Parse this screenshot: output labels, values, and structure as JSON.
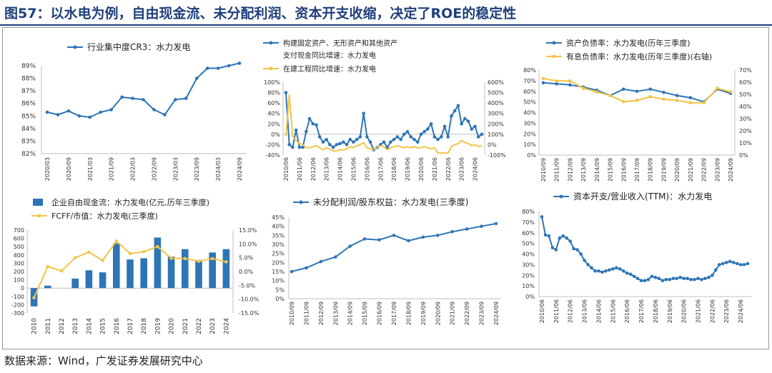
{
  "page": {
    "title": "图57：以水电为例，自由现金流、未分配利润、资本开支收缩，决定了ROE的稳定性",
    "source": "数据来源：Wind，广发证券发展研究中心"
  },
  "colors": {
    "blue": "#2e75b6",
    "gold": "#f2c447",
    "bar": "#2e75b6",
    "title": "#1f3f7a",
    "axis": "#bfbfbf"
  },
  "chart_data": [
    {
      "id": "cr3",
      "type": "line",
      "legend": [
        "行业集中度CR3：水力发电"
      ],
      "x_tick_labels": [
        "2020/03",
        "2020/09",
        "2021/03",
        "2021/09",
        "2022/03",
        "2022/09",
        "2023/03",
        "2023/09",
        "2024/03",
        "2024/09"
      ],
      "y_tick_labels": [
        "82%",
        "83%",
        "84%",
        "85%",
        "86%",
        "87%",
        "88%",
        "89%"
      ],
      "ylim": [
        82,
        89
      ],
      "series": [
        {
          "name": "行业集中度CR3：水力发电",
          "color": "#2e75b6",
          "x": [
            0,
            1,
            2,
            3,
            4,
            5,
            6,
            7,
            8,
            9,
            10,
            11,
            12,
            13,
            14,
            15,
            16,
            17,
            18
          ],
          "y": [
            85.3,
            85.1,
            85.4,
            85.0,
            84.9,
            85.3,
            85.5,
            86.5,
            86.4,
            86.3,
            85.5,
            85.1,
            86.3,
            86.4,
            88.0,
            88.8,
            88.8,
            89.0,
            89.2
          ]
        }
      ]
    },
    {
      "id": "capex_growth",
      "type": "line",
      "legend": [
        "构建固定资产、无形资产和其他资产支付现金同比增速：水力发电",
        "在建工程同比增速：水力发电"
      ],
      "x_tick_labels": [
        "2010/06",
        "2011/06",
        "2012/06",
        "2013/06",
        "2014/06",
        "2015/06",
        "2016/06",
        "2017/06",
        "2018/06",
        "2019/06",
        "2020/06",
        "2021/06",
        "2022/06",
        "2023/06",
        "2024/06"
      ],
      "y_left_tick_labels": [
        "-40%",
        "-20%",
        "0%",
        "20%",
        "40%",
        "60%",
        "80%",
        "100%"
      ],
      "y_right_tick_labels": [
        "-100%",
        "0%",
        "100%",
        "200%",
        "300%",
        "400%",
        "500%",
        "600%"
      ],
      "ylim_left": [
        -40,
        100
      ],
      "ylim_right": [
        -100,
        600
      ],
      "series": [
        {
          "name": "构建固定资产、无形资产和其他资产支付现金同比增速：水力发电",
          "axis": "left",
          "color": "#2e75b6",
          "x": [
            0,
            0.25,
            0.5,
            0.75,
            1,
            1.25,
            1.5,
            1.75,
            2,
            2.25,
            2.5,
            2.75,
            3,
            3.25,
            3.5,
            3.75,
            4,
            4.25,
            4.5,
            4.75,
            5,
            5.25,
            5.5,
            5.75,
            6,
            6.25,
            6.5,
            6.75,
            7,
            7.25,
            7.5,
            7.75,
            8,
            8.25,
            8.5,
            8.75,
            9,
            9.25,
            9.5,
            9.75,
            10,
            10.25,
            10.5,
            10.75,
            11,
            11.25,
            11.5,
            11.75,
            12,
            12.25,
            12.5,
            12.75,
            13,
            13.25,
            13.5,
            13.75,
            14,
            14.25,
            14.5
          ],
          "y": [
            80,
            -20,
            -25,
            8,
            -25,
            -25,
            5,
            30,
            20,
            18,
            -5,
            -15,
            -10,
            -20,
            -25,
            -20,
            -18,
            -15,
            -20,
            -10,
            -15,
            -10,
            -5,
            40,
            -5,
            -15,
            -30,
            -25,
            -20,
            -15,
            -25,
            -15,
            -10,
            -5,
            -10,
            0,
            5,
            -5,
            -10,
            -15,
            0,
            5,
            10,
            20,
            -5,
            -10,
            -5,
            15,
            -5,
            35,
            45,
            55,
            20,
            30,
            25,
            10,
            15,
            -5,
            0
          ]
        },
        {
          "name": "在建工程同比增速：水力发电",
          "axis": "right",
          "color": "#f2c447",
          "x": [
            0,
            0.25,
            0.5,
            0.75,
            1,
            1.25,
            1.5,
            1.75,
            2,
            2.25,
            2.5,
            2.75,
            3,
            3.25,
            3.5,
            3.75,
            4,
            4.25,
            4.5,
            4.75,
            5,
            5.25,
            5.5,
            5.75,
            6,
            6.25,
            6.5,
            6.75,
            7,
            7.25,
            7.5,
            7.75,
            8,
            8.25,
            8.5,
            8.75,
            9,
            9.25,
            9.5,
            9.75,
            10,
            10.25,
            10.5,
            10.75,
            11,
            11.25,
            11.5,
            11.75,
            12,
            12.25,
            12.5,
            12.75,
            13,
            13.25,
            13.5,
            13.75,
            14,
            14.25,
            14.5
          ],
          "y": [
            80,
            480,
            80,
            40,
            10,
            0,
            -30,
            -30,
            -20,
            -10,
            -30,
            -50,
            -30,
            -40,
            -60,
            -60,
            -50,
            -50,
            -40,
            -20,
            -30,
            -10,
            0,
            20,
            -30,
            -40,
            -50,
            -20,
            -10,
            -20,
            -50,
            -30,
            -20,
            -10,
            -20,
            -30,
            -20,
            -30,
            -20,
            -30,
            -30,
            -20,
            -30,
            -40,
            -30,
            -80,
            -80,
            -80,
            -80,
            -20,
            0,
            10,
            40,
            20,
            10,
            -10,
            0,
            -20,
            -10
          ]
        }
      ]
    },
    {
      "id": "leverage",
      "type": "line",
      "legend": [
        "资产负债率：水力发电(历年三季度)",
        "有息负债率：水力发电(历年三季度)(右轴)"
      ],
      "x_tick_labels": [
        "2010/09",
        "2011/09",
        "2012/09",
        "2013/09",
        "2014/09",
        "2015/09",
        "2016/09",
        "2017/09",
        "2018/09",
        "2019/09",
        "2020/09",
        "2021/09",
        "2022/09",
        "2023/09",
        "2024/09"
      ],
      "y_left_tick_labels": [
        "0%",
        "10%",
        "20%",
        "30%",
        "40%",
        "50%",
        "60%",
        "70%",
        "80%"
      ],
      "y_right_tick_labels": [
        "0%",
        "10%",
        "20%",
        "30%",
        "40%",
        "50%",
        "60%",
        "70%"
      ],
      "ylim_left": [
        0,
        80
      ],
      "ylim_right": [
        0,
        70
      ],
      "series": [
        {
          "name": "资产负债率：水力发电(历年三季度)",
          "axis": "left",
          "color": "#2e75b6",
          "x": [
            0,
            1,
            2,
            3,
            4,
            5,
            6,
            7,
            8,
            9,
            10,
            11,
            12,
            13,
            14
          ],
          "y": [
            68,
            67,
            66,
            64,
            61,
            56,
            62,
            60,
            62,
            59,
            56,
            54,
            50,
            62,
            58
          ]
        },
        {
          "name": "有息负债率：水力发电(历年三季度)(右轴)",
          "axis": "right",
          "color": "#f2c447",
          "x": [
            0,
            1,
            2,
            3,
            4,
            5,
            6,
            7,
            8,
            9,
            10,
            11,
            12,
            13,
            14
          ],
          "y": [
            63,
            61,
            61,
            55,
            52,
            49,
            44,
            45,
            48,
            46,
            45,
            43,
            43,
            55,
            52
          ]
        }
      ]
    },
    {
      "id": "fcf",
      "type": "bar",
      "legend": [
        "企业自由现金流：水力发电(亿元,历年三季度)",
        "FCFF/市值：水力发电(三季度)"
      ],
      "categories": [
        "2010",
        "2011",
        "2012",
        "2013",
        "2014",
        "2015",
        "2016",
        "2017",
        "2018",
        "2019",
        "2020",
        "2021",
        "2022",
        "2023",
        "2024"
      ],
      "y_left_tick_labels": [
        "-300",
        "-200",
        "-100",
        "0",
        "100",
        "200",
        "300",
        "400",
        "500",
        "600",
        "700"
      ],
      "y_right_tick_labels": [
        "-15.0%",
        "-10.0%",
        "-5.0%",
        "0.0%",
        "5.0%",
        "10.0%",
        "15.0%"
      ],
      "ylim_left": [
        -300,
        700
      ],
      "ylim_right": [
        -15,
        15
      ],
      "series": [
        {
          "name": "企业自由现金流：水力发电(亿元,历年三季度)",
          "type": "bar",
          "axis": "left",
          "color": "#2e75b6",
          "values": [
            -220,
            30,
            0,
            115,
            215,
            190,
            540,
            345,
            360,
            610,
            380,
            470,
            340,
            430,
            470
          ]
        },
        {
          "name": "FCFF/市值：水力发电(三季度)",
          "type": "line",
          "axis": "right",
          "color": "#f2c447",
          "values": [
            -9.5,
            1.8,
            0.2,
            5,
            7,
            4,
            11,
            6.5,
            7.2,
            9,
            4.8,
            4.7,
            3.7,
            4.7,
            3.5
          ]
        }
      ]
    },
    {
      "id": "undistributed_profit",
      "type": "line",
      "legend": [
        "未分配利润/股东权益：水力发电(三季度)"
      ],
      "x_tick_labels": [
        "2010/09",
        "2011/09",
        "2012/09",
        "2013/09",
        "2014/09",
        "2015/09",
        "2016/09",
        "2017/09",
        "2018/09",
        "2019/09",
        "2020/09",
        "2021/09",
        "2022/09",
        "2023/09",
        "2024/09"
      ],
      "y_tick_labels": [
        "0%",
        "5%",
        "10%",
        "15%",
        "20%",
        "25%",
        "30%",
        "35%",
        "40%",
        "45%"
      ],
      "ylim": [
        0,
        45
      ],
      "series": [
        {
          "name": "未分配利润/股东权益：水力发电(三季度)",
          "color": "#2e75b6",
          "x": [
            0,
            1,
            2,
            3,
            4,
            5,
            6,
            7,
            8,
            9,
            10,
            11,
            12,
            13,
            14
          ],
          "y": [
            15,
            17,
            20.5,
            23,
            29,
            33,
            32.5,
            35,
            32,
            34,
            35,
            37,
            38.5,
            40,
            41.5
          ]
        }
      ]
    },
    {
      "id": "capex_revenue",
      "type": "line",
      "legend": [
        "资本开支/营业收入(TTM)：水力发电"
      ],
      "x_tick_labels": [
        "2010/06",
        "2011/06",
        "2012/06",
        "2013/06",
        "2014/06",
        "2015/06",
        "2016/06",
        "2017/06",
        "2018/06",
        "2019/06",
        "2020/06",
        "2021/06",
        "2022/06",
        "2023/06",
        "2024/06"
      ],
      "y_tick_labels": [
        "0%",
        "10%",
        "20%",
        "30%",
        "40%",
        "50%",
        "60%",
        "70%",
        "80%"
      ],
      "ylim": [
        0,
        80
      ],
      "series": [
        {
          "name": "资本开支/营业收入(TTM)：水力发电",
          "color": "#2e75b6",
          "x": [
            0,
            0.25,
            0.5,
            0.75,
            1,
            1.25,
            1.5,
            1.75,
            2,
            2.25,
            2.5,
            2.75,
            3,
            3.25,
            3.5,
            3.75,
            4,
            4.25,
            4.5,
            4.75,
            5,
            5.25,
            5.5,
            5.75,
            6,
            6.25,
            6.5,
            6.75,
            7,
            7.25,
            7.5,
            7.75,
            8,
            8.25,
            8.5,
            8.75,
            9,
            9.25,
            9.5,
            9.75,
            10,
            10.25,
            10.5,
            10.75,
            11,
            11.25,
            11.5,
            11.75,
            12,
            12.25,
            12.5,
            12.75,
            13,
            13.25,
            13.5,
            13.75,
            14,
            14.25,
            14.5
          ],
          "y": [
            75,
            58,
            57,
            46,
            44,
            55,
            57,
            55,
            52,
            45,
            44,
            40,
            34,
            30,
            27,
            24,
            24,
            23,
            24,
            25,
            26,
            27,
            26,
            24,
            22,
            21,
            19,
            17,
            15,
            15,
            16,
            19,
            18,
            17,
            15,
            16,
            16,
            17,
            17,
            18,
            17,
            17,
            16,
            16,
            17,
            16,
            17,
            18,
            20,
            25,
            30,
            31,
            32,
            33,
            32,
            31,
            30,
            30,
            31
          ]
        }
      ]
    }
  ]
}
